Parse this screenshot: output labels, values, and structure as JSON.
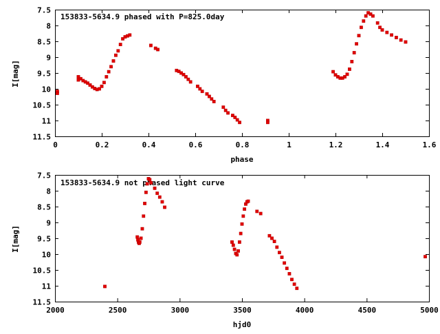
{
  "chart_data": [
    {
      "type": "scatter",
      "title": "153833-5634.9 phased with P=825.0day",
      "xlabel": "phase",
      "ylabel": "I[mag]",
      "xlim": [
        0,
        1.6
      ],
      "ylim": [
        7.5,
        11.5
      ],
      "y_inverted": true,
      "grid": false,
      "x_ticks": [
        "0",
        "0.2",
        "0.4",
        "0.6",
        "0.8",
        "1",
        "1.2",
        "1.4",
        "1.6"
      ],
      "y_ticks": [
        "7.5",
        "8",
        "8.5",
        "9",
        "9.5",
        "10",
        "10.5",
        "11",
        "11.5"
      ],
      "marker_color": "#e00000",
      "series": [
        {
          "points": [
            [
              0.01,
              10.08
            ],
            [
              0.01,
              10.14
            ],
            [
              0.1,
              9.62
            ],
            [
              0.1,
              9.72
            ],
            [
              0.11,
              9.68
            ],
            [
              0.12,
              9.74
            ],
            [
              0.13,
              9.78
            ],
            [
              0.14,
              9.82
            ],
            [
              0.15,
              9.88
            ],
            [
              0.16,
              9.94
            ],
            [
              0.17,
              9.99
            ],
            [
              0.18,
              10.02
            ],
            [
              0.19,
              10.0
            ],
            [
              0.2,
              9.92
            ],
            [
              0.21,
              9.8
            ],
            [
              0.22,
              9.62
            ],
            [
              0.23,
              9.46
            ],
            [
              0.24,
              9.3
            ],
            [
              0.25,
              9.12
            ],
            [
              0.26,
              8.94
            ],
            [
              0.27,
              8.8
            ],
            [
              0.28,
              8.6
            ],
            [
              0.29,
              8.42
            ],
            [
              0.3,
              8.36
            ],
            [
              0.31,
              8.33
            ],
            [
              0.32,
              8.3
            ],
            [
              0.41,
              8.63
            ],
            [
              0.43,
              8.72
            ],
            [
              0.44,
              8.76
            ],
            [
              0.52,
              9.42
            ],
            [
              0.53,
              9.45
            ],
            [
              0.54,
              9.5
            ],
            [
              0.55,
              9.55
            ],
            [
              0.56,
              9.62
            ],
            [
              0.57,
              9.7
            ],
            [
              0.58,
              9.78
            ],
            [
              0.61,
              9.92
            ],
            [
              0.62,
              10.0
            ],
            [
              0.63,
              10.08
            ],
            [
              0.65,
              10.16
            ],
            [
              0.66,
              10.24
            ],
            [
              0.67,
              10.32
            ],
            [
              0.68,
              10.4
            ],
            [
              0.72,
              10.58
            ],
            [
              0.73,
              10.68
            ],
            [
              0.74,
              10.76
            ],
            [
              0.76,
              10.84
            ],
            [
              0.77,
              10.9
            ],
            [
              0.78,
              10.98
            ],
            [
              0.79,
              11.06
            ],
            [
              0.91,
              11.0
            ],
            [
              0.91,
              11.06
            ],
            [
              1.19,
              9.46
            ],
            [
              1.2,
              9.56
            ],
            [
              1.21,
              9.62
            ],
            [
              1.22,
              9.66
            ],
            [
              1.23,
              9.66
            ],
            [
              1.24,
              9.62
            ],
            [
              1.25,
              9.54
            ],
            [
              1.26,
              9.38
            ],
            [
              1.27,
              9.14
            ],
            [
              1.28,
              8.86
            ],
            [
              1.29,
              8.58
            ],
            [
              1.3,
              8.32
            ],
            [
              1.31,
              8.06
            ],
            [
              1.32,
              7.86
            ],
            [
              1.33,
              7.7
            ],
            [
              1.34,
              7.6
            ],
            [
              1.35,
              7.64
            ],
            [
              1.36,
              7.7
            ],
            [
              1.38,
              7.92
            ],
            [
              1.39,
              8.06
            ],
            [
              1.4,
              8.14
            ],
            [
              1.42,
              8.22
            ],
            [
              1.44,
              8.3
            ],
            [
              1.46,
              8.38
            ],
            [
              1.48,
              8.46
            ],
            [
              1.5,
              8.52
            ]
          ]
        }
      ]
    },
    {
      "type": "scatter",
      "title": "153833-5634.9 not phased light curve",
      "xlabel": "hjd0",
      "ylabel": "I[mag]",
      "xlim": [
        2000,
        5000
      ],
      "ylim": [
        7.5,
        11.5
      ],
      "y_inverted": true,
      "grid": false,
      "x_ticks": [
        "2000",
        "2500",
        "3000",
        "3500",
        "4000",
        "4500",
        "5000"
      ],
      "y_ticks": [
        "7.5",
        "8",
        "8.5",
        "9",
        "9.5",
        "10",
        "10.5",
        "11",
        "11.5"
      ],
      "marker_color": "#e00000",
      "series": [
        {
          "points": [
            [
              2400,
              11.02
            ],
            [
              2660,
              9.46
            ],
            [
              2665,
              9.55
            ],
            [
              2670,
              9.62
            ],
            [
              2675,
              9.66
            ],
            [
              2680,
              9.62
            ],
            [
              2690,
              9.5
            ],
            [
              2700,
              9.2
            ],
            [
              2710,
              8.8
            ],
            [
              2720,
              8.4
            ],
            [
              2730,
              8.05
            ],
            [
              2740,
              7.78
            ],
            [
              2750,
              7.62
            ],
            [
              2760,
              7.65
            ],
            [
              2770,
              7.75
            ],
            [
              2800,
              7.92
            ],
            [
              2820,
              8.08
            ],
            [
              2840,
              8.2
            ],
            [
              2860,
              8.35
            ],
            [
              2880,
              8.52
            ],
            [
              3420,
              9.62
            ],
            [
              3430,
              9.72
            ],
            [
              3440,
              9.85
            ],
            [
              3450,
              9.98
            ],
            [
              3460,
              10.02
            ],
            [
              3470,
              9.9
            ],
            [
              3480,
              9.62
            ],
            [
              3490,
              9.35
            ],
            [
              3500,
              9.05
            ],
            [
              3510,
              8.8
            ],
            [
              3520,
              8.58
            ],
            [
              3530,
              8.42
            ],
            [
              3540,
              8.35
            ],
            [
              3550,
              8.33
            ],
            [
              3620,
              8.65
            ],
            [
              3650,
              8.72
            ],
            [
              3720,
              9.42
            ],
            [
              3740,
              9.5
            ],
            [
              3760,
              9.6
            ],
            [
              3780,
              9.78
            ],
            [
              3800,
              9.95
            ],
            [
              3820,
              10.1
            ],
            [
              3840,
              10.28
            ],
            [
              3860,
              10.45
            ],
            [
              3880,
              10.62
            ],
            [
              3900,
              10.8
            ],
            [
              3920,
              10.95
            ],
            [
              3940,
              11.08
            ],
            [
              4970,
              10.08
            ]
          ]
        }
      ]
    }
  ]
}
